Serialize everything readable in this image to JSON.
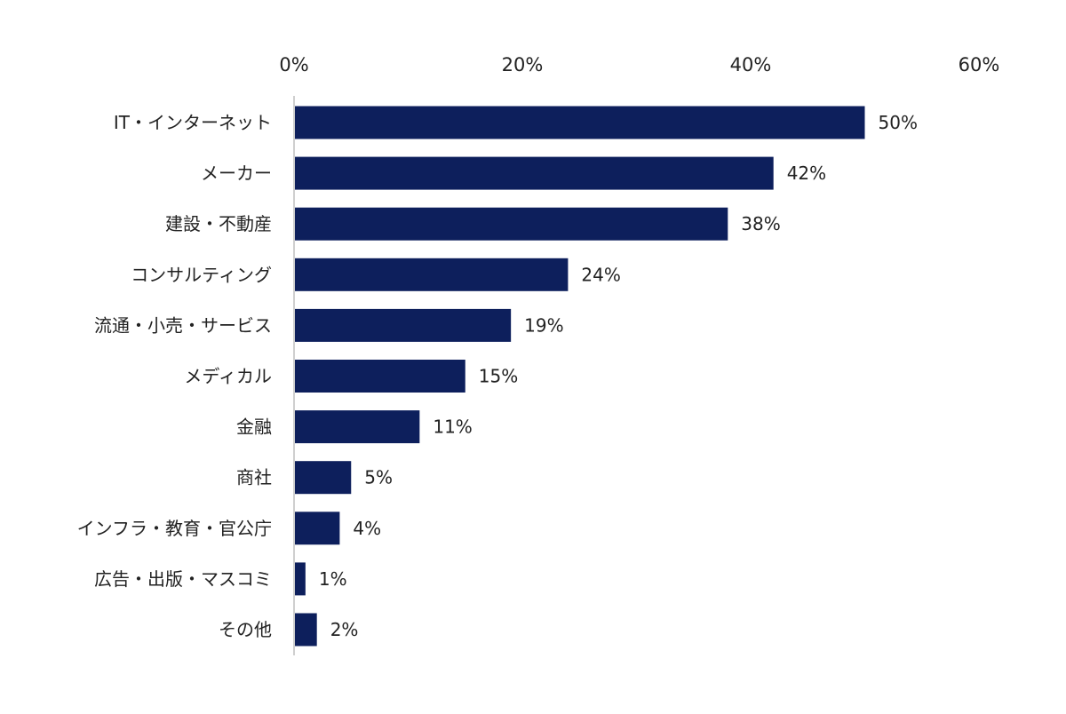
{
  "colors": {
    "bar": "#0d1f5c",
    "axis": "#bfbfbf",
    "text": "#222222"
  },
  "chart_data": {
    "type": "bar",
    "orientation": "horizontal",
    "title": "",
    "xlabel": "",
    "ylabel": "",
    "xlim": [
      0,
      60
    ],
    "x_ticks": [
      0,
      20,
      40,
      60
    ],
    "x_tick_labels": [
      "0%",
      "20%",
      "40%",
      "60%"
    ],
    "x_axis_position": "top",
    "grid": false,
    "legend": "none",
    "categories": [
      "IT・インターネット",
      "メーカー",
      "建設・不動産",
      "コンサルティング",
      "流通・小売・サービス",
      "メディカル",
      "金融",
      "商社",
      "インフラ・教育・官公庁",
      "広告・出版・マスコミ",
      "その他"
    ],
    "values": [
      50,
      42,
      38,
      24,
      19,
      15,
      11,
      5,
      4,
      1,
      2
    ],
    "value_labels": [
      "50%",
      "42%",
      "38%",
      "24%",
      "19%",
      "15%",
      "11%",
      "5%",
      "4%",
      "1%",
      "2%"
    ]
  }
}
